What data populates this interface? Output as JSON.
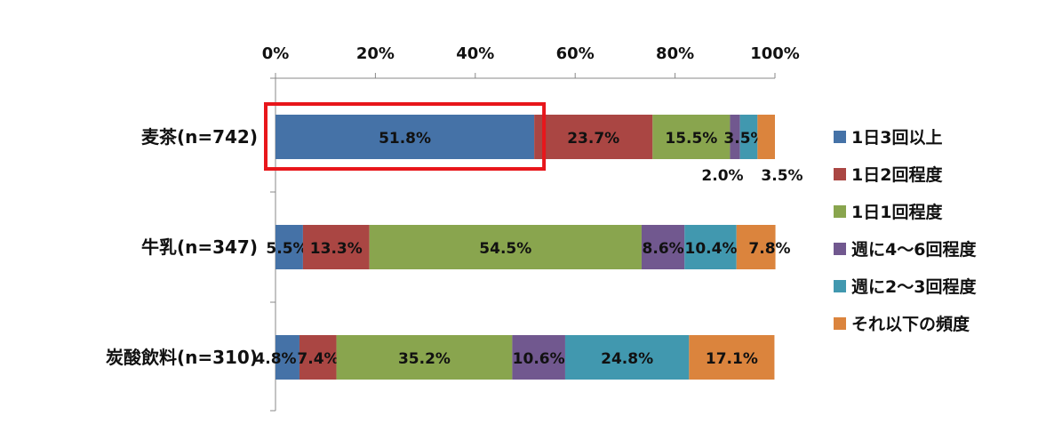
{
  "chart_data": {
    "type": "bar",
    "orientation": "horizontal",
    "stacked": true,
    "percent": true,
    "xlim": [
      0,
      100
    ],
    "x_ticks": [
      "0%",
      "20%",
      "40%",
      "60%",
      "80%",
      "100%"
    ],
    "x_tick_values": [
      0,
      20,
      40,
      60,
      80,
      100
    ],
    "axis_position": "top",
    "grid": false,
    "legend_position": "right",
    "categories": [
      "麦茶(n=742)",
      "牛乳(n=347)",
      "炭酸飲料(n=310)"
    ],
    "series": [
      {
        "name": "1日3回以上",
        "color": "#4572A7",
        "values": [
          51.8,
          5.5,
          4.8
        ],
        "labels": [
          "51.8%",
          "5.5%",
          "4.8%"
        ]
      },
      {
        "name": "1日2回程度",
        "color": "#AA4643",
        "values": [
          23.7,
          13.3,
          7.4
        ],
        "labels": [
          "23.7%",
          "13.3%",
          "7.4%"
        ]
      },
      {
        "name": "1日1回程度",
        "color": "#89A54E",
        "values": [
          15.5,
          54.5,
          35.2
        ],
        "labels": [
          "15.5%",
          "54.5%",
          "35.2%"
        ]
      },
      {
        "name": "週に4～6回程度",
        "color": "#71588F",
        "values": [
          2.0,
          8.6,
          10.6
        ],
        "labels": [
          "2.0%",
          "8.6%",
          "10.6%"
        ]
      },
      {
        "name": "週に2～3回程度",
        "color": "#4198AF",
        "values": [
          3.5,
          10.4,
          24.8
        ],
        "labels": [
          "3.5%",
          "10.4%",
          "24.8%"
        ]
      },
      {
        "name": "それ以下の頻度",
        "color": "#DB843D",
        "values": [
          3.5,
          7.8,
          17.1
        ],
        "labels": [
          "3.5%",
          "7.8%",
          "17.1%"
        ]
      }
    ],
    "highlight": {
      "category_index": 0,
      "series_index": 0,
      "color": "#E8161B"
    }
  }
}
